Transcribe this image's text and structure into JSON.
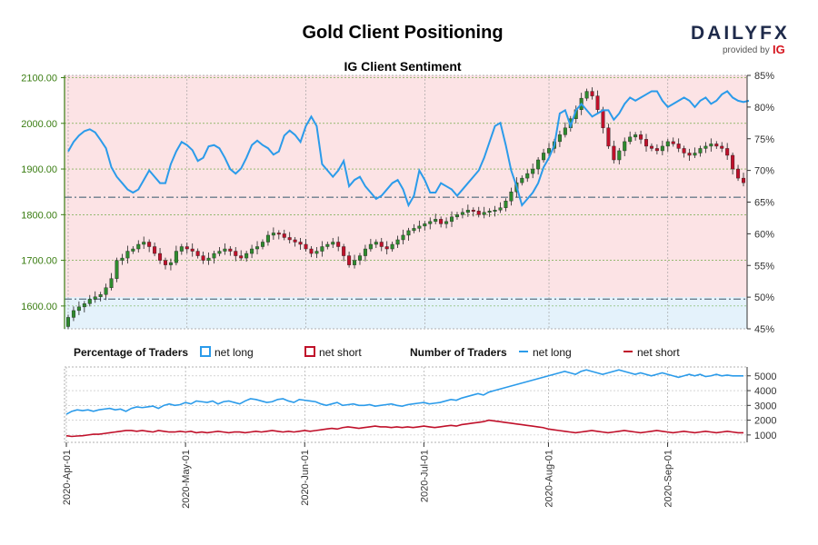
{
  "header": {
    "title": "Gold Client Positioning",
    "subtitle": "IG Client Sentiment",
    "brand": {
      "name": "DAILYFX",
      "provided_by": "provided by",
      "ig": "IG",
      "brand_color": "#1e2a4a",
      "ig_color": "#d6141e"
    }
  },
  "legend": {
    "pct_heading": "Percentage of Traders",
    "pct_long": "net long",
    "pct_short": "net short",
    "num_heading": "Number of Traders",
    "num_long": "net long",
    "num_short": "net short"
  },
  "colors": {
    "long": "#2b9bea",
    "short": "#c0102a",
    "bull_candle": "#2e8b2e",
    "bear_candle": "#c0102a",
    "short_zone": "#fce3e5",
    "long_zone": "#e4f2fb",
    "price_axis": "#3a7d12"
  },
  "chart_data": [
    {
      "type": "candlestick",
      "title": "IG Client Sentiment",
      "ylim": [
        1550,
        2105
      ],
      "yticks": [
        "1600.00",
        "1700.00",
        "1800.00",
        "1900.00",
        "2000.00",
        "2100.00"
      ],
      "reference_lines": [
        1615,
        1838
      ],
      "closes": [
        1575,
        1590,
        1598,
        1605,
        1615,
        1620,
        1625,
        1640,
        1660,
        1700,
        1705,
        1720,
        1725,
        1735,
        1740,
        1730,
        1715,
        1700,
        1690,
        1695,
        1720,
        1730,
        1725,
        1720,
        1710,
        1700,
        1705,
        1715,
        1720,
        1725,
        1720,
        1710,
        1705,
        1715,
        1725,
        1730,
        1740,
        1755,
        1760,
        1758,
        1750,
        1745,
        1740,
        1735,
        1725,
        1715,
        1720,
        1730,
        1735,
        1740,
        1730,
        1710,
        1690,
        1700,
        1710,
        1725,
        1735,
        1740,
        1730,
        1725,
        1735,
        1745,
        1755,
        1765,
        1770,
        1775,
        1780,
        1785,
        1790,
        1780,
        1785,
        1795,
        1800,
        1805,
        1810,
        1808,
        1800,
        1805,
        1808,
        1810,
        1815,
        1830,
        1850,
        1870,
        1880,
        1890,
        1900,
        1920,
        1935,
        1945,
        1960,
        1975,
        1990,
        2010,
        2030,
        2055,
        2070,
        2060,
        2030,
        1990,
        1950,
        1920,
        1940,
        1960,
        1970,
        1975,
        1965,
        1950,
        1945,
        1940,
        1950,
        1960,
        1955,
        1945,
        1935,
        1930,
        1935,
        1945,
        1950,
        1955,
        1950,
        1945,
        1930,
        1900,
        1880,
        1870
      ],
      "sentiment_long_pct": [
        73.0,
        74.5,
        75.5,
        76.2,
        76.5,
        76.0,
        74.8,
        73.5,
        70.5,
        69.0,
        68.0,
        67.0,
        66.5,
        67.0,
        68.5,
        70.0,
        69.0,
        68.0,
        68.0,
        71.0,
        73.0,
        74.5,
        74.0,
        73.2,
        71.5,
        72.0,
        73.8,
        74.0,
        73.5,
        72.0,
        70.2,
        69.5,
        70.3,
        72.0,
        74.0,
        74.7,
        74.0,
        73.5,
        72.5,
        73.0,
        75.5,
        76.3,
        75.6,
        74.5,
        77.0,
        78.5,
        77.0,
        71.0,
        70.0,
        69.0,
        70.0,
        71.5,
        67.5,
        68.5,
        69.0,
        67.5,
        66.5,
        65.5,
        66.0,
        67.0,
        68.0,
        68.5,
        67.0,
        64.5,
        66.0,
        70.0,
        68.5,
        66.5,
        66.5,
        68.0,
        67.5,
        67.0,
        66.0,
        67.0,
        68.0,
        69.0,
        70.0,
        72.0,
        74.5,
        77.0,
        77.5,
        74.0,
        70.0,
        67.5,
        64.5,
        65.5,
        66.5,
        68.0,
        70.5,
        72.0,
        74.0,
        79.0,
        79.5,
        77.0,
        79.5,
        80.5,
        79.5,
        78.5,
        79.0,
        79.5,
        79.5,
        78.0,
        79.0,
        80.5,
        81.5,
        81.0,
        81.5,
        82.0,
        82.5,
        82.5,
        81.0,
        80.0,
        80.5,
        81.0,
        81.5,
        81.0,
        80.0,
        81.0,
        81.5,
        80.5,
        81.0,
        82.0,
        82.5,
        81.5,
        81.0,
        80.8,
        81.0
      ],
      "right_yticks": [
        "85%",
        "80%",
        "75%",
        "70%",
        "65%",
        "60%",
        "55%",
        "50%",
        "45%"
      ],
      "right_ylim": [
        45,
        85
      ]
    },
    {
      "type": "line",
      "title": "Number of Traders",
      "ylim": [
        500,
        5600
      ],
      "yticks": [
        "1000",
        "2000",
        "3000",
        "4000",
        "5000"
      ],
      "series": [
        {
          "name": "net long",
          "values": [
            2400,
            2600,
            2700,
            2650,
            2700,
            2600,
            2700,
            2750,
            2800,
            2700,
            2750,
            2600,
            2800,
            2900,
            2850,
            2900,
            2950,
            2800,
            3000,
            3100,
            3000,
            3050,
            3200,
            3100,
            3300,
            3250,
            3200,
            3300,
            3100,
            3250,
            3300,
            3200,
            3100,
            3300,
            3450,
            3400,
            3300,
            3200,
            3250,
            3400,
            3450,
            3300,
            3200,
            3400,
            3350,
            3300,
            3250,
            3100,
            3000,
            3100,
            3200,
            3000,
            3050,
            3100,
            3000,
            3000,
            3050,
            2950,
            3000,
            3050,
            3100,
            3000,
            2950,
            3050,
            3100,
            3150,
            3200,
            3100,
            3150,
            3200,
            3300,
            3400,
            3350,
            3500,
            3600,
            3700,
            3800,
            3700,
            3900,
            4000,
            4100,
            4200,
            4300,
            4400,
            4500,
            4600,
            4700,
            4800,
            4900,
            5000,
            5100,
            5200,
            5300,
            5200,
            5100,
            5300,
            5400,
            5300,
            5200,
            5100,
            5200,
            5300,
            5400,
            5300,
            5200,
            5100,
            5200,
            5100,
            5000,
            5100,
            5200,
            5100,
            5000,
            4900,
            5000,
            5100,
            5000,
            5100,
            4950,
            5000,
            5100,
            5000,
            5050,
            5000,
            5000,
            5000
          ],
          "color": "#2b9bea"
        },
        {
          "name": "net short",
          "values": [
            950,
            900,
            930,
            950,
            1000,
            1050,
            1050,
            1100,
            1150,
            1200,
            1250,
            1300,
            1300,
            1250,
            1300,
            1250,
            1200,
            1300,
            1250,
            1200,
            1200,
            1250,
            1200,
            1250,
            1150,
            1200,
            1150,
            1200,
            1250,
            1200,
            1150,
            1200,
            1200,
            1150,
            1200,
            1250,
            1200,
            1250,
            1300,
            1250,
            1200,
            1250,
            1200,
            1250,
            1300,
            1250,
            1300,
            1350,
            1400,
            1450,
            1400,
            1500,
            1550,
            1500,
            1450,
            1500,
            1550,
            1600,
            1550,
            1550,
            1500,
            1550,
            1500,
            1550,
            1500,
            1550,
            1600,
            1550,
            1500,
            1550,
            1600,
            1650,
            1600,
            1700,
            1750,
            1800,
            1850,
            1900,
            2000,
            1950,
            1900,
            1850,
            1800,
            1750,
            1700,
            1650,
            1600,
            1550,
            1500,
            1400,
            1350,
            1300,
            1250,
            1200,
            1150,
            1200,
            1250,
            1300,
            1250,
            1200,
            1150,
            1200,
            1250,
            1300,
            1250,
            1200,
            1150,
            1200,
            1250,
            1300,
            1250,
            1200,
            1150,
            1200,
            1250,
            1200,
            1150,
            1200,
            1250,
            1200,
            1150,
            1200,
            1250,
            1200,
            1150,
            1150
          ],
          "color": "#c0102a"
        }
      ]
    }
  ],
  "x_axis": {
    "labels": [
      "2020-Apr-01",
      "2020-May-01",
      "2020-Jun-01",
      "2020-Jul-01",
      "2020-Aug-01",
      "2020-Sep-01"
    ]
  }
}
